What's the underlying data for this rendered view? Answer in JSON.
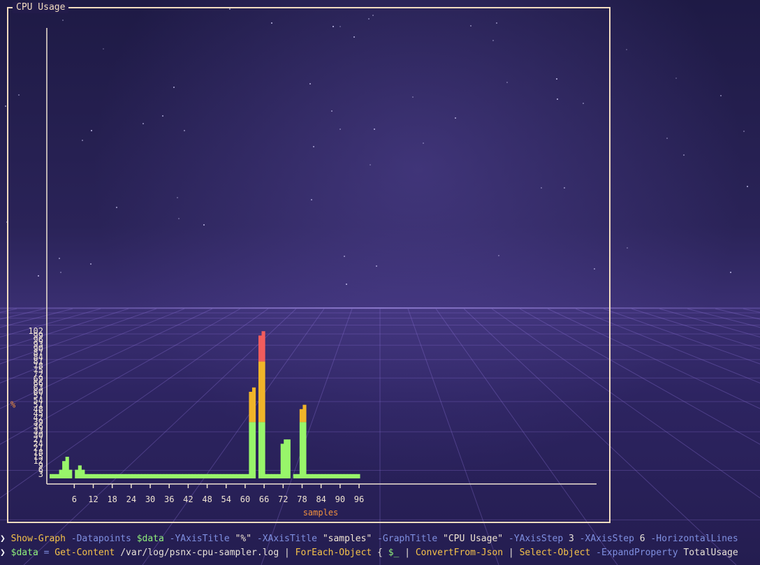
{
  "graph_title": "CPU Usage",
  "chart_data": {
    "type": "bar",
    "title": "CPU Usage",
    "ylabel": "%",
    "xlabel": "samples",
    "ylim": [
      0,
      102
    ],
    "xlim": [
      0,
      98
    ],
    "y_ticks": [
      3,
      6,
      9,
      12,
      15,
      18,
      21,
      24,
      27,
      30,
      33,
      36,
      39,
      42,
      45,
      48,
      51,
      54,
      57,
      60,
      63,
      66,
      69,
      72,
      75,
      78,
      81,
      84,
      87,
      90,
      93,
      96,
      99,
      102
    ],
    "x_ticks": [
      6,
      12,
      18,
      24,
      30,
      36,
      42,
      48,
      54,
      60,
      66,
      72,
      78,
      84,
      90,
      96
    ],
    "grid": false,
    "color_bands": [
      {
        "from": 0,
        "to": 39,
        "color": "#98f56a"
      },
      {
        "from": 39,
        "to": 81,
        "color": "#f0b429"
      },
      {
        "from": 81,
        "to": 102,
        "color": "#f25c5c"
      }
    ],
    "values": [
      3,
      3,
      3,
      6,
      12,
      15,
      6,
      0,
      6,
      9,
      6,
      3,
      3,
      3,
      3,
      3,
      3,
      3,
      3,
      3,
      3,
      3,
      3,
      3,
      3,
      3,
      3,
      3,
      3,
      3,
      3,
      3,
      3,
      3,
      3,
      3,
      3,
      3,
      3,
      3,
      3,
      3,
      3,
      3,
      3,
      3,
      3,
      3,
      3,
      3,
      3,
      3,
      3,
      3,
      3,
      3,
      3,
      3,
      3,
      3,
      3,
      3,
      3,
      60,
      63,
      0,
      99,
      102,
      3,
      3,
      3,
      3,
      3,
      24,
      27,
      27,
      0,
      3,
      3,
      48,
      51,
      3,
      3,
      3,
      3,
      3,
      3,
      3,
      3,
      3,
      3,
      3,
      3,
      3,
      3,
      3,
      3,
      3
    ]
  },
  "terminal": {
    "line1": [
      {
        "t": "Show-Graph",
        "c": "c-cmd"
      },
      {
        "t": " -Datapoints ",
        "c": "c-param"
      },
      {
        "t": "$data",
        "c": "c-var"
      },
      {
        "t": " -YAxisTitle ",
        "c": "c-param"
      },
      {
        "t": "\"%\"",
        "c": "c-str"
      },
      {
        "t": " -XAxisTitle ",
        "c": "c-param"
      },
      {
        "t": "\"samples\"",
        "c": "c-str"
      },
      {
        "t": " -GraphTitle ",
        "c": "c-param"
      },
      {
        "t": "\"CPU Usage\"",
        "c": "c-str"
      },
      {
        "t": " -YAxisStep ",
        "c": "c-param"
      },
      {
        "t": "3",
        "c": "c-plain"
      },
      {
        "t": " -XAxisStep ",
        "c": "c-param"
      },
      {
        "t": "6",
        "c": "c-plain"
      },
      {
        "t": " -HorizontalLines",
        "c": "c-param"
      }
    ],
    "line2": [
      {
        "t": "$data",
        "c": "c-var"
      },
      {
        "t": " = ",
        "c": "c-param"
      },
      {
        "t": "Get-Content",
        "c": "c-cmd"
      },
      {
        "t": " /var/log/psnx-cpu-sampler.log | ",
        "c": "c-plain"
      },
      {
        "t": "ForEach-Object",
        "c": "c-cmd"
      },
      {
        "t": " { ",
        "c": "c-plain"
      },
      {
        "t": "$_",
        "c": "c-var"
      },
      {
        "t": " | ",
        "c": "c-plain"
      },
      {
        "t": "ConvertFrom-Json",
        "c": "c-cmd"
      },
      {
        "t": " | ",
        "c": "c-plain"
      },
      {
        "t": "Select-Object",
        "c": "c-cmd"
      },
      {
        "t": " -ExpandProperty",
        "c": "c-param"
      },
      {
        "t": " TotalUsage",
        "c": "c-plain"
      }
    ]
  }
}
